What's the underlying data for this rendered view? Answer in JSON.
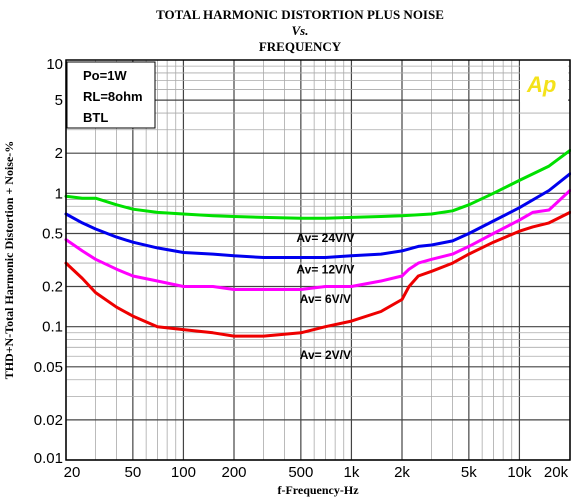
{
  "chart_data": {
    "type": "line",
    "title": [
      "TOTAL HARMONIC DISTORTION PLUS NOISE",
      "Vs.",
      "FREQUENCY"
    ],
    "xlabel": "f-Frequency-Hz",
    "ylabel": "THD+N-Total Harmonic Distortion + Noise-%",
    "xscale": "log",
    "yscale": "log",
    "xlim": [
      20,
      20000
    ],
    "ylim": [
      0.01,
      10
    ],
    "grid": true,
    "x_ticks": [
      {
        "value": 20,
        "label": "20"
      },
      {
        "value": 50,
        "label": "50"
      },
      {
        "value": 100,
        "label": "100"
      },
      {
        "value": 200,
        "label": "200"
      },
      {
        "value": 500,
        "label": "500"
      },
      {
        "value": 1000,
        "label": "1k"
      },
      {
        "value": 2000,
        "label": "2k"
      },
      {
        "value": 5000,
        "label": "5k"
      },
      {
        "value": 10000,
        "label": "10k"
      },
      {
        "value": 20000,
        "label": "20k"
      }
    ],
    "y_ticks": [
      {
        "value": 10,
        "label": "10"
      },
      {
        "value": 5,
        "label": "5"
      },
      {
        "value": 2,
        "label": "2"
      },
      {
        "value": 1,
        "label": "1"
      },
      {
        "value": 0.5,
        "label": "0.5"
      },
      {
        "value": 0.2,
        "label": "0.2"
      },
      {
        "value": 0.1,
        "label": "0.1"
      },
      {
        "value": 0.05,
        "label": "0.05"
      },
      {
        "value": 0.02,
        "label": "0.02"
      },
      {
        "value": 0.01,
        "label": "0.01"
      }
    ],
    "conditions": [
      "Po=1W",
      "RL=8ohm",
      "BTL"
    ],
    "logo": "Ap",
    "series": [
      {
        "name": "Av= 24V/V",
        "color": "#00e000",
        "label_at": [
          700,
          0.43
        ],
        "x": [
          20,
          25,
          30,
          40,
          50,
          70,
          100,
          150,
          200,
          300,
          500,
          700,
          1000,
          1500,
          2000,
          3000,
          4000,
          5000,
          7000,
          10000,
          15000,
          20000
        ],
        "y": [
          0.95,
          0.92,
          0.92,
          0.82,
          0.76,
          0.72,
          0.7,
          0.68,
          0.67,
          0.66,
          0.65,
          0.65,
          0.66,
          0.67,
          0.68,
          0.7,
          0.74,
          0.82,
          1.0,
          1.25,
          1.6,
          2.1
        ]
      },
      {
        "name": "Av= 12V/V",
        "color": "#0000ee",
        "label_at": [
          700,
          0.25
        ],
        "x": [
          20,
          25,
          30,
          40,
          50,
          70,
          100,
          150,
          200,
          300,
          500,
          700,
          1000,
          1500,
          2000,
          2500,
          3000,
          4000,
          5000,
          7000,
          10000,
          15000,
          20000
        ],
        "y": [
          0.7,
          0.6,
          0.54,
          0.47,
          0.43,
          0.39,
          0.36,
          0.35,
          0.34,
          0.33,
          0.33,
          0.33,
          0.34,
          0.35,
          0.37,
          0.4,
          0.41,
          0.44,
          0.5,
          0.62,
          0.78,
          1.05,
          1.4
        ]
      },
      {
        "name": "Av= 6V/V",
        "color": "#ff00ff",
        "label_at": [
          700,
          0.15
        ],
        "x": [
          20,
          25,
          30,
          40,
          50,
          70,
          100,
          150,
          200,
          300,
          500,
          700,
          1000,
          1500,
          2000,
          2200,
          2500,
          3000,
          4000,
          5000,
          7000,
          10000,
          12000,
          15000,
          20000
        ],
        "y": [
          0.45,
          0.37,
          0.32,
          0.27,
          0.24,
          0.22,
          0.2,
          0.2,
          0.19,
          0.19,
          0.19,
          0.2,
          0.2,
          0.22,
          0.24,
          0.27,
          0.3,
          0.32,
          0.35,
          0.4,
          0.5,
          0.63,
          0.72,
          0.75,
          1.05
        ]
      },
      {
        "name": "Av= 2V/V",
        "color": "#ee0000",
        "label_at": [
          700,
          0.057
        ],
        "x": [
          20,
          25,
          30,
          40,
          50,
          70,
          100,
          150,
          200,
          300,
          500,
          700,
          1000,
          1500,
          2000,
          2200,
          2500,
          3000,
          4000,
          5000,
          7000,
          10000,
          12000,
          15000,
          20000
        ],
        "y": [
          0.3,
          0.23,
          0.18,
          0.14,
          0.12,
          0.1,
          0.095,
          0.09,
          0.085,
          0.085,
          0.09,
          0.1,
          0.11,
          0.13,
          0.16,
          0.2,
          0.24,
          0.26,
          0.3,
          0.35,
          0.43,
          0.52,
          0.56,
          0.6,
          0.72
        ]
      }
    ]
  }
}
